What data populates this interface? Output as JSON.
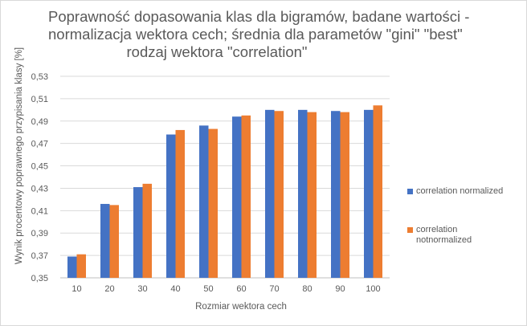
{
  "title_lines": [
    "Poprawność dopasowania klas dla bigramów, badane wartości -",
    "normalizacja wektora cech; średnia dla parametów \"gini\" \"best\"",
    "rodzaj wektora \"correlation\""
  ],
  "chart_data": {
    "type": "bar",
    "title": "Poprawność dopasowania klas dla bigramów, badane wartości - normalizacja wektora cech; średnia dla parametów \"gini\" \"best\" rodzaj wektora \"correlation\"",
    "xlabel": "Rozmiar wektora cech",
    "ylabel": "Wynik procentowy poprawnego przypisania klasy [%]",
    "categories": [
      "10",
      "20",
      "30",
      "40",
      "50",
      "60",
      "70",
      "80",
      "90",
      "100"
    ],
    "ylim": [
      0.35,
      0.53
    ],
    "yticks": [
      "0,35",
      "0,37",
      "0,39",
      "0,41",
      "0,43",
      "0,45",
      "0,47",
      "0,49",
      "0,51",
      "0,53"
    ],
    "grid": true,
    "legend_position": "right",
    "series": [
      {
        "name": "correlation normalized",
        "color": "#4472C4",
        "values": [
          0.369,
          0.416,
          0.431,
          0.478,
          0.486,
          0.494,
          0.5,
          0.5,
          0.499,
          0.5
        ]
      },
      {
        "name": "correlation notnormalized",
        "color": "#ED7D31",
        "values": [
          0.371,
          0.415,
          0.434,
          0.482,
          0.483,
          0.495,
          0.499,
          0.498,
          0.498,
          0.504
        ]
      }
    ]
  },
  "legend": [
    {
      "lines": [
        "correlation normalized"
      ],
      "color": "#4472C4"
    },
    {
      "lines": [
        "correlation",
        "notnormalized"
      ],
      "color": "#ED7D31"
    }
  ]
}
